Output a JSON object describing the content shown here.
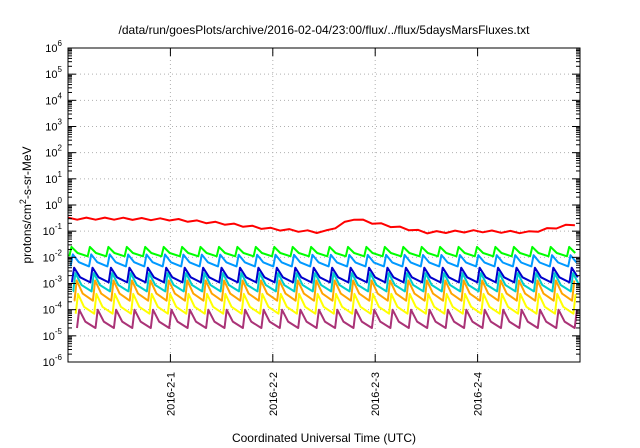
{
  "chart_data": {
    "type": "line",
    "title": "/data/run/goesPlots/archive/2016-02-04/23:00/flux/../flux/5daysMarsFluxes.txt",
    "xlabel": "Coordinated Universal Time (UTC)",
    "ylabel": "protons/cm²-s-sr-MeV",
    "ylabel_parts": {
      "before": "protons/cm",
      "sup": "2",
      "after": "-s-sr-MeV"
    },
    "yscale": "log",
    "ylim": [
      1e-06,
      1000000.0
    ],
    "y_ticks": [
      {
        "base": "10",
        "exp": "-6",
        "value": 1e-06
      },
      {
        "base": "10",
        "exp": "-5",
        "value": 1e-05
      },
      {
        "base": "10",
        "exp": "-4",
        "value": 0.0001
      },
      {
        "base": "10",
        "exp": "-3",
        "value": 0.001
      },
      {
        "base": "10",
        "exp": "-2",
        "value": 0.01
      },
      {
        "base": "10",
        "exp": "-1",
        "value": 0.1
      },
      {
        "base": "10",
        "exp": "0",
        "value": 1
      },
      {
        "base": "10",
        "exp": "1",
        "value": 10.0
      },
      {
        "base": "10",
        "exp": "2",
        "value": 100.0
      },
      {
        "base": "10",
        "exp": "3",
        "value": 1000.0
      },
      {
        "base": "10",
        "exp": "4",
        "value": 10000.0
      },
      {
        "base": "10",
        "exp": "5",
        "value": 100000.0
      },
      {
        "base": "10",
        "exp": "6",
        "value": 1000000.0
      }
    ],
    "xlim": [
      "2016-01-31T00:00",
      "2016-02-05T00:00"
    ],
    "x_ticks": [
      {
        "label": "2016-2-1",
        "value": "2016-02-01T00:00"
      },
      {
        "label": "2016-2-2",
        "value": "2016-02-02T00:00"
      },
      {
        "label": "2016-2-3",
        "value": "2016-02-03T00:00"
      },
      {
        "label": "2016-2-4",
        "value": "2016-02-04T00:00"
      }
    ],
    "grid": true,
    "legend": "none",
    "sawtooth_period_hours": 4.32,
    "series": [
      {
        "color": "#ff0000",
        "x": [
          "2016-01-31T00:00",
          "2016-01-31T12:00",
          "2016-02-01T00:00",
          "2016-02-01T12:00",
          "2016-02-02T00:00",
          "2016-02-02T12:00",
          "2016-02-02T19:00",
          "2016-02-03T00:00",
          "2016-02-03T12:00",
          "2016-02-04T00:00",
          "2016-02-04T12:00",
          "2016-02-05T00:00"
        ],
        "values": [
          0.3,
          0.3,
          0.28,
          0.2,
          0.12,
          0.09,
          0.3,
          0.2,
          0.09,
          0.1,
          0.09,
          0.2
        ],
        "jitter": 0.04
      },
      {
        "color": "#00ff00",
        "x": [
          "2016-01-31T00:00",
          "2016-02-05T00:00"
        ],
        "peak": [
          0.025,
          0.025
        ],
        "trough": [
          0.011,
          0.011
        ]
      },
      {
        "color": "#0099ff",
        "x": [
          "2016-01-31T00:00",
          "2016-02-05T00:00"
        ],
        "peak": [
          0.013,
          0.012
        ],
        "trough": [
          0.0045,
          0.0045
        ]
      },
      {
        "color": "#0000cc",
        "x": [
          "2016-01-31T00:00",
          "2016-02-05T00:00"
        ],
        "peak": [
          0.004,
          0.004
        ],
        "trough": [
          0.0011,
          0.0011
        ]
      },
      {
        "color": "#00cccc",
        "x": [
          "2016-01-31T00:00",
          "2016-02-05T00:00"
        ],
        "peak": [
          0.0025,
          0.0025
        ],
        "trough": [
          0.0005,
          0.0005
        ]
      },
      {
        "color": "#ffa500",
        "x": [
          "2016-01-31T00:00",
          "2016-02-05T00:00"
        ],
        "peak": [
          0.0013,
          0.0013
        ],
        "trough": [
          0.00022,
          0.00022
        ]
      },
      {
        "color": "#ffff00",
        "x": [
          "2016-01-31T00:00",
          "2016-02-05T00:00"
        ],
        "peak": [
          0.0004,
          0.0004
        ],
        "trough": [
          7e-05,
          7e-05
        ]
      },
      {
        "color": "#aa3377",
        "x": [
          "2016-01-31T00:00",
          "2016-02-05T00:00"
        ],
        "peak": [
          0.0001,
          0.0001
        ],
        "trough": [
          2e-05,
          2e-05
        ]
      }
    ]
  }
}
